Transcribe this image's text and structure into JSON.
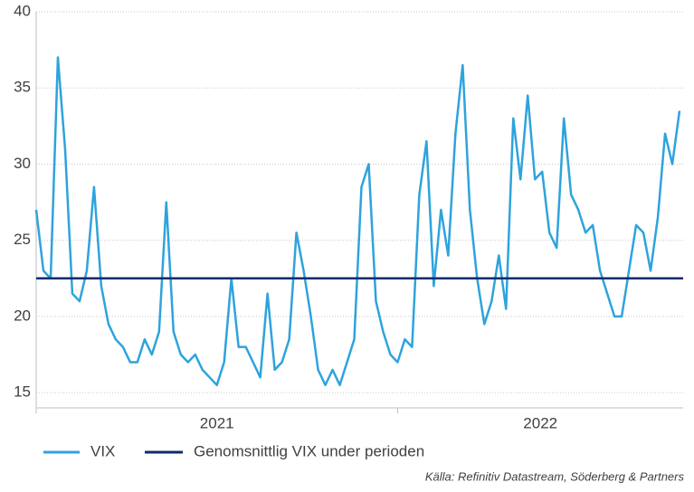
{
  "chart_data": {
    "type": "line",
    "x": [
      2021.0,
      2021.02,
      2021.04,
      2021.06,
      2021.08,
      2021.1,
      2021.12,
      2021.14,
      2021.16,
      2021.18,
      2021.2,
      2021.22,
      2021.24,
      2021.26,
      2021.28,
      2021.3,
      2021.32,
      2021.34,
      2021.36,
      2021.38,
      2021.4,
      2021.42,
      2021.44,
      2021.46,
      2021.48,
      2021.5,
      2021.52,
      2021.54,
      2021.56,
      2021.58,
      2021.6,
      2021.62,
      2021.64,
      2021.66,
      2021.68,
      2021.7,
      2021.72,
      2021.74,
      2021.76,
      2021.78,
      2021.8,
      2021.82,
      2021.84,
      2021.86,
      2021.88,
      2021.9,
      2021.92,
      2021.94,
      2021.96,
      2021.98,
      2022.0,
      2022.02,
      2022.04,
      2022.06,
      2022.08,
      2022.1,
      2022.12,
      2022.14,
      2022.16,
      2022.18,
      2022.2,
      2022.22,
      2022.24,
      2022.26,
      2022.28,
      2022.3,
      2022.32,
      2022.34,
      2022.36,
      2022.38,
      2022.4,
      2022.42,
      2022.44,
      2022.46,
      2022.48,
      2022.5,
      2022.52,
      2022.54,
      2022.56,
      2022.58,
      2022.6,
      2022.62,
      2022.64,
      2022.66,
      2022.68,
      2022.7,
      2022.72,
      2022.74,
      2022.76,
      2022.78
    ],
    "series": [
      {
        "name": "VIX",
        "color": "#2ea3dc",
        "values": [
          27,
          23,
          22.5,
          37,
          31,
          21.5,
          21,
          23,
          28.5,
          22,
          19.5,
          18.5,
          18,
          17,
          17,
          18.5,
          17.5,
          19,
          27.5,
          19,
          17.5,
          17,
          17.5,
          16.5,
          16,
          15.5,
          17,
          22.5,
          18,
          18,
          17,
          16,
          21.5,
          16.5,
          17,
          18.5,
          25.5,
          23,
          20,
          16.5,
          15.5,
          16.5,
          15.5,
          17,
          18.5,
          28.5,
          30,
          21,
          19,
          17.5,
          17,
          18.5,
          18,
          28,
          31.5,
          22,
          27,
          24,
          32,
          36.5,
          27,
          22.5,
          19.5,
          21,
          24,
          20.5,
          33,
          29,
          34.5,
          29,
          29.5,
          25.5,
          24.5,
          33,
          28,
          27,
          25.5,
          26,
          23,
          21.5,
          20,
          20,
          23,
          26,
          25.5,
          23,
          26.5,
          32,
          30,
          33.5
        ]
      }
    ],
    "average": {
      "name": "Genomsnittlig VIX under perioden",
      "color": "#0d2c6c",
      "value": 22.5
    },
    "xlim": [
      2021,
      2022.79
    ],
    "xticks": [
      {
        "value": 2021,
        "label": "2021"
      },
      {
        "value": 2022,
        "label": "2022"
      }
    ],
    "ylim": [
      14,
      40
    ],
    "yticks": [
      15,
      20,
      25,
      30,
      35,
      40
    ],
    "grid": true,
    "legend": "bottom",
    "source": "Källa: Refinitiv Datastream, Söderberg & Partners"
  }
}
